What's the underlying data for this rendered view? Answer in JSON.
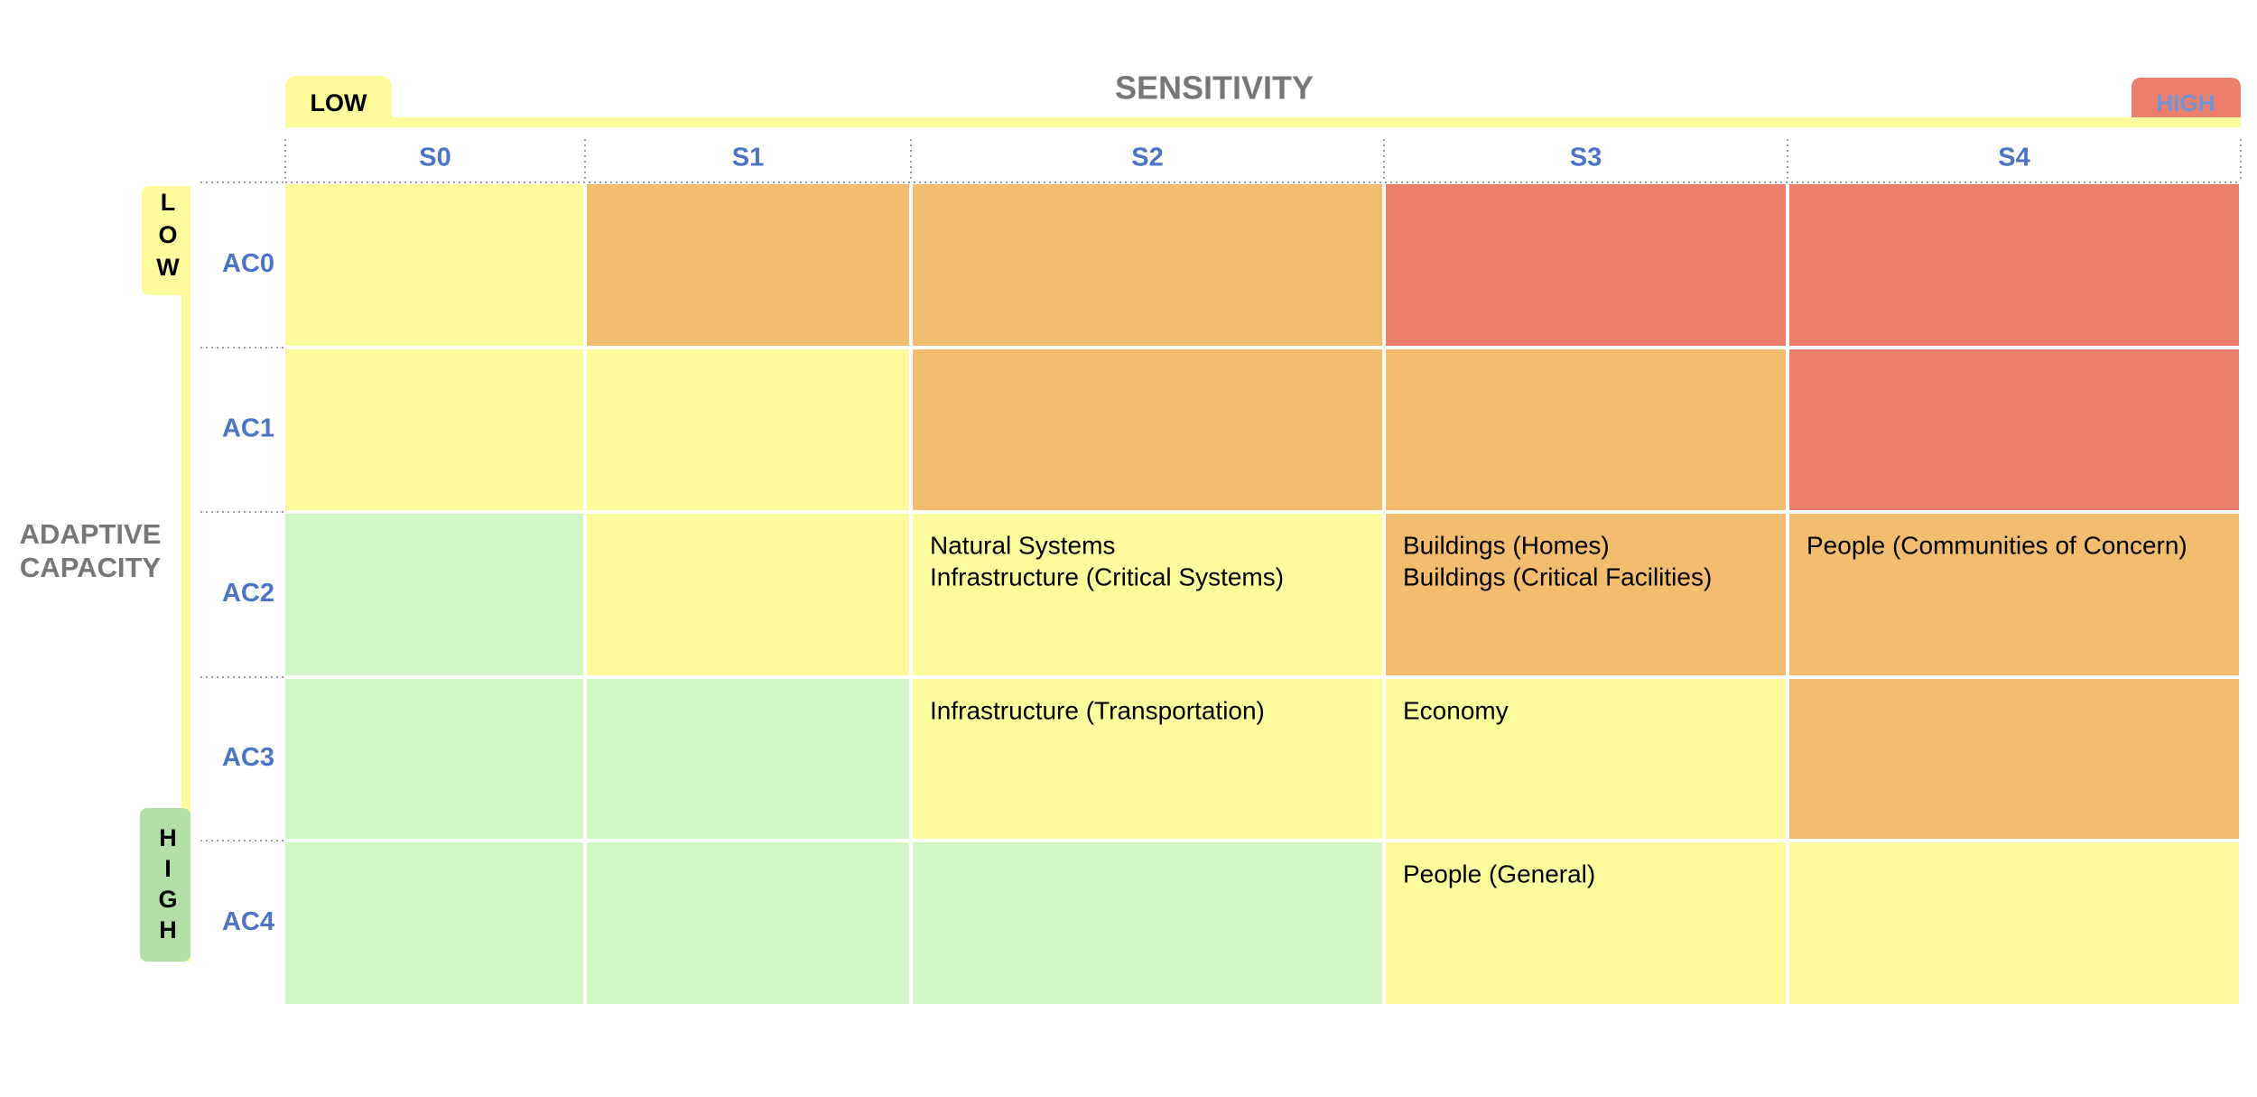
{
  "header": {
    "title": "SENSITIVITY",
    "low": "LOW",
    "high": "HIGH"
  },
  "side": {
    "title_lines": [
      "ADAPTIVE",
      "CAPACITY"
    ],
    "low": "LOW",
    "high": "HIGH"
  },
  "columns": [
    "S0",
    "S1",
    "S2",
    "S3",
    "S4"
  ],
  "rows": [
    {
      "label": "AC0",
      "cells": [
        {
          "color": "#fdfb9c"
        },
        {
          "color": "#f2bd6e"
        },
        {
          "color": "#f2bd6e"
        },
        {
          "color": "#eb7f6b"
        },
        {
          "color": "#eb7f6b"
        }
      ]
    },
    {
      "label": "AC1",
      "cells": [
        {
          "color": "#fdfb9c"
        },
        {
          "color": "#fdfb9c"
        },
        {
          "color": "#f2bd6e"
        },
        {
          "color": "#f2bd6e"
        },
        {
          "color": "#eb7f6b"
        }
      ]
    },
    {
      "label": "AC2",
      "cells": [
        {
          "color": "#d0f8c5"
        },
        {
          "color": "#fdfb9c"
        },
        {
          "color": "#fdfb9c",
          "items": [
            "Natural Systems",
            "Infrastructure (Critical Systems)"
          ]
        },
        {
          "color": "#f2bd6e",
          "items": [
            "Buildings (Homes)",
            "Buildings (Critical Facilities)"
          ]
        },
        {
          "color": "#f2bd6e",
          "items": [
            "People (Communities of Concern)"
          ]
        }
      ]
    },
    {
      "label": "AC3",
      "cells": [
        {
          "color": "#d0f8c5"
        },
        {
          "color": "#d0f8c5"
        },
        {
          "color": "#fdfb9c",
          "items": [
            "Infrastructure (Transportation)"
          ]
        },
        {
          "color": "#fdfb9c",
          "items": [
            "Economy"
          ]
        },
        {
          "color": "#f2bd6e"
        }
      ]
    },
    {
      "label": "AC4",
      "cells": [
        {
          "color": "#d0f8c5"
        },
        {
          "color": "#d0f8c5"
        },
        {
          "color": "#d0f8c5"
        },
        {
          "color": "#fdfb9c",
          "items": [
            "People (General)"
          ]
        },
        {
          "color": "#fdfb9c"
        }
      ]
    }
  ]
}
